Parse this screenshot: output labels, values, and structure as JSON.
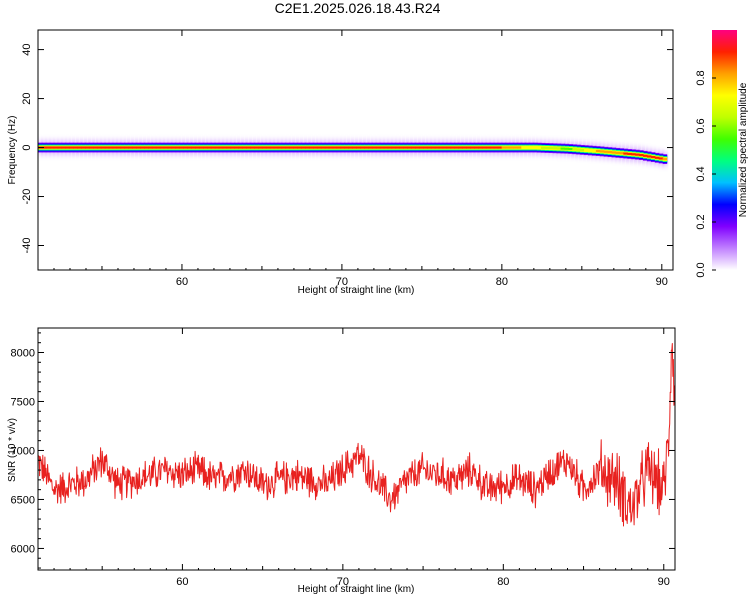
{
  "figure": {
    "title": "C2E1.2025.026.18.43.R24"
  },
  "chart_data": [
    {
      "type": "heatmap",
      "xlabel": "Height of straight line (km)",
      "ylabel": "Frequency (Hz)",
      "xlim": [
        51,
        90.7
      ],
      "ylim": [
        -50,
        48
      ],
      "x_ticks": [
        60,
        70,
        80,
        90
      ],
      "y_ticks": [
        -40,
        -20,
        0,
        20,
        40
      ],
      "colorbar": {
        "label": "Normalized spectral amplitude",
        "range": [
          0,
          1
        ],
        "ticks": [
          "0.0",
          "0.2",
          "0.4",
          "0.6",
          "0.8"
        ],
        "colors": [
          "#ffffff",
          "#c080ff",
          "#8000ff",
          "#0000ff",
          "#00c0ff",
          "#00ff80",
          "#40ff00",
          "#c0ff00",
          "#ffff00",
          "#ffa000",
          "#ff2000",
          "#ff0080"
        ]
      },
      "ridge": {
        "x": [
          51,
          56,
          60,
          66,
          72,
          77,
          79.5,
          82,
          84,
          86,
          88.5,
          90.3
        ],
        "frequency": [
          0,
          0,
          0,
          0,
          0,
          0,
          0,
          0,
          -0.5,
          -1.5,
          -3,
          -5
        ],
        "amplitude": [
          0.95,
          0.95,
          0.95,
          0.95,
          0.95,
          0.95,
          0.9,
          0.7,
          0.55,
          0.8,
          0.9,
          0.85
        ]
      }
    },
    {
      "type": "line",
      "xlabel": "Height of straight line (km)",
      "ylabel": "SNR (10 * v/v)",
      "xlim": [
        51,
        90.7
      ],
      "ylim": [
        5780,
        8250
      ],
      "x_ticks": [
        60,
        70,
        80,
        90
      ],
      "y_ticks": [
        6000,
        6500,
        7000,
        7500,
        8000
      ],
      "series": [
        {
          "color": "#e8211f",
          "x": [
            51,
            52,
            53,
            54,
            55,
            56,
            57,
            58,
            59,
            60,
            61,
            62,
            63,
            64,
            65,
            66,
            67,
            68,
            69,
            70,
            71,
            72,
            73,
            74,
            75,
            76,
            77,
            78,
            79,
            80,
            81,
            82,
            83,
            84,
            85,
            86,
            87,
            88,
            89,
            90,
            90.3,
            90.5,
            90.7
          ],
          "y": [
            6900,
            6600,
            6650,
            6700,
            6900,
            6650,
            6700,
            6750,
            6800,
            6750,
            6800,
            6700,
            6750,
            6800,
            6650,
            6700,
            6750,
            6700,
            6650,
            6800,
            6950,
            6700,
            6500,
            6700,
            6800,
            6750,
            6700,
            6800,
            6600,
            6650,
            6700,
            6600,
            6800,
            6900,
            6600,
            6800,
            6700,
            6400,
            6800,
            6600,
            7100,
            8200,
            7500
          ]
        }
      ]
    }
  ]
}
